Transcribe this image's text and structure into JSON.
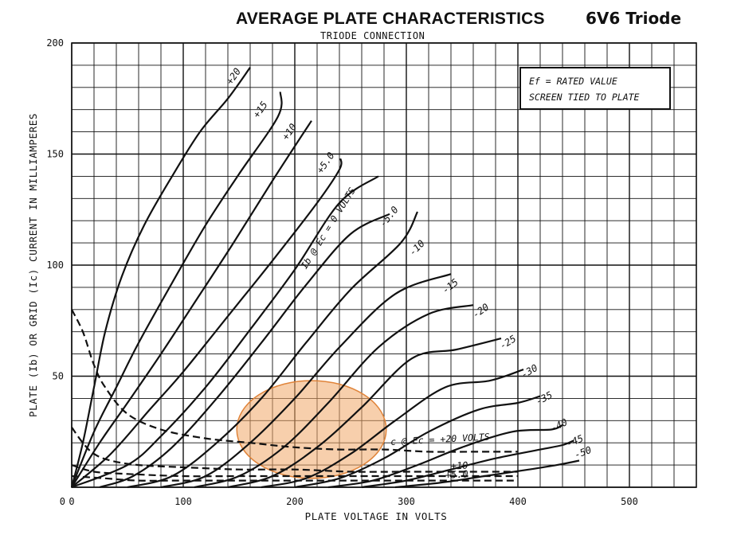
{
  "header": {
    "title": "AVERAGE PLATE CHARACTERISTICS",
    "subtitle": "TRIODE CONNECTION",
    "tube": "6V6 Triode"
  },
  "notes": {
    "line1": "Ef = RATED VALUE",
    "line2": "SCREEN TIED TO PLATE"
  },
  "chart_data": {
    "type": "line",
    "title": "AVERAGE PLATE CHARACTERISTICS",
    "xlabel": "PLATE VOLTAGE IN VOLTS",
    "ylabel": "PLATE (Ib) OR GRID (Ic) CURRENT IN MILLIAMPERES",
    "xlim": [
      0,
      560
    ],
    "ylim": [
      0,
      200
    ],
    "xticks": [
      0,
      100,
      200,
      300,
      400,
      500
    ],
    "yticks": [
      0,
      50,
      100,
      150,
      200
    ],
    "grid": true,
    "plate_curves_label": "Ib @ Ec = 0 VOLTS",
    "grid_curves_label": "Ic @ Ec = +20 VOLTS",
    "plate_series": [
      {
        "name": "+20",
        "label": "+20",
        "values": [
          [
            0,
            0
          ],
          [
            10,
            20
          ],
          [
            20,
            45
          ],
          [
            30,
            70
          ],
          [
            45,
            95
          ],
          [
            65,
            118
          ],
          [
            90,
            140
          ],
          [
            115,
            160
          ],
          [
            140,
            175
          ],
          [
            160,
            189
          ]
        ]
      },
      {
        "name": "+15",
        "label": "+15",
        "values": [
          [
            0,
            0
          ],
          [
            20,
            25
          ],
          [
            40,
            45
          ],
          [
            60,
            65
          ],
          [
            90,
            92
          ],
          [
            120,
            118
          ],
          [
            150,
            141
          ],
          [
            185,
            167
          ],
          [
            187,
            178
          ]
        ]
      },
      {
        "name": "+10",
        "label": "+10",
        "values": [
          [
            0,
            0
          ],
          [
            25,
            20
          ],
          [
            50,
            38
          ],
          [
            80,
            60
          ],
          [
            110,
            83
          ],
          [
            145,
            110
          ],
          [
            180,
            138
          ],
          [
            215,
            165
          ]
        ]
      },
      {
        "name": "+5.0",
        "label": "+5.0",
        "values": [
          [
            0,
            0
          ],
          [
            35,
            15
          ],
          [
            70,
            35
          ],
          [
            100,
            52
          ],
          [
            140,
            77
          ],
          [
            180,
            102
          ],
          [
            220,
            128
          ],
          [
            240,
            143
          ],
          [
            241,
            148
          ]
        ]
      },
      {
        "name": "0",
        "label": "0",
        "values": [
          [
            0,
            0
          ],
          [
            50,
            10
          ],
          [
            80,
            23
          ],
          [
            120,
            45
          ],
          [
            160,
            71
          ],
          [
            200,
            98
          ],
          [
            240,
            128
          ],
          [
            275,
            140
          ]
        ]
      },
      {
        "name": "-5.0",
        "label": "-5.0",
        "values": [
          [
            25,
            0
          ],
          [
            55,
            5
          ],
          [
            90,
            18
          ],
          [
            130,
            40
          ],
          [
            170,
            65
          ],
          [
            210,
            91
          ],
          [
            250,
            114
          ],
          [
            285,
            123
          ]
        ]
      },
      {
        "name": "-10",
        "label": "-10",
        "values": [
          [
            50,
            0
          ],
          [
            90,
            5
          ],
          [
            130,
            20
          ],
          [
            170,
            40
          ],
          [
            210,
            65
          ],
          [
            250,
            89
          ],
          [
            295,
            110
          ],
          [
            310,
            124
          ]
        ]
      },
      {
        "name": "-15",
        "label": "-15",
        "values": [
          [
            80,
            0
          ],
          [
            120,
            5
          ],
          [
            160,
            20
          ],
          [
            200,
            40
          ],
          [
            240,
            63
          ],
          [
            290,
            87
          ],
          [
            340,
            96
          ]
        ]
      },
      {
        "name": "-20",
        "label": "-20",
        "values": [
          [
            110,
            0
          ],
          [
            150,
            5
          ],
          [
            190,
            18
          ],
          [
            230,
            38
          ],
          [
            275,
            63
          ],
          [
            320,
            78
          ],
          [
            360,
            82
          ]
        ]
      },
      {
        "name": "-25",
        "label": "-25",
        "values": [
          [
            140,
            0
          ],
          [
            180,
            5
          ],
          [
            220,
            18
          ],
          [
            260,
            36
          ],
          [
            305,
            58
          ],
          [
            345,
            62
          ],
          [
            385,
            67
          ]
        ]
      },
      {
        "name": "-30",
        "label": "-30",
        "values": [
          [
            170,
            0
          ],
          [
            210,
            4
          ],
          [
            250,
            15
          ],
          [
            290,
            30
          ],
          [
            335,
            45
          ],
          [
            375,
            48
          ],
          [
            405,
            53
          ]
        ]
      },
      {
        "name": "-35",
        "label": "-35",
        "values": [
          [
            200,
            0
          ],
          [
            240,
            4
          ],
          [
            280,
            13
          ],
          [
            320,
            25
          ],
          [
            365,
            35
          ],
          [
            400,
            38
          ],
          [
            420,
            41
          ]
        ]
      },
      {
        "name": "-40",
        "label": "-40",
        "values": [
          [
            230,
            0
          ],
          [
            270,
            3
          ],
          [
            310,
            10
          ],
          [
            350,
            18
          ],
          [
            395,
            25
          ],
          [
            430,
            26
          ],
          [
            440,
            28
          ]
        ]
      },
      {
        "name": "-45",
        "label": "-45",
        "values": [
          [
            260,
            0
          ],
          [
            300,
            3
          ],
          [
            340,
            8
          ],
          [
            380,
            13
          ],
          [
            420,
            17
          ],
          [
            440,
            19
          ],
          [
            450,
            21
          ]
        ]
      },
      {
        "name": "-50",
        "label": "-50",
        "values": [
          [
            290,
            0
          ],
          [
            330,
            2
          ],
          [
            370,
            5
          ],
          [
            410,
            8
          ],
          [
            435,
            10
          ],
          [
            455,
            12
          ]
        ]
      }
    ],
    "grid_series": [
      {
        "name": "Ic +20",
        "label": "+20",
        "values": [
          [
            0,
            80
          ],
          [
            10,
            70
          ],
          [
            20,
            55
          ],
          [
            30,
            45
          ],
          [
            50,
            33
          ],
          [
            80,
            26
          ],
          [
            120,
            22
          ],
          [
            160,
            20
          ],
          [
            200,
            18
          ],
          [
            240,
            17
          ],
          [
            280,
            17
          ],
          [
            320,
            16
          ],
          [
            360,
            16
          ],
          [
            400,
            16
          ]
        ]
      },
      {
        "name": "Ic +15",
        "label": "",
        "values": [
          [
            0,
            27
          ],
          [
            10,
            20
          ],
          [
            20,
            15
          ],
          [
            35,
            12
          ],
          [
            60,
            10
          ],
          [
            100,
            9
          ],
          [
            150,
            8
          ],
          [
            200,
            8
          ],
          [
            250,
            7
          ],
          [
            300,
            7
          ],
          [
            350,
            7
          ],
          [
            400,
            7
          ]
        ]
      },
      {
        "name": "Ic +10",
        "label": "+10",
        "values": [
          [
            0,
            10
          ],
          [
            20,
            7
          ],
          [
            50,
            6
          ],
          [
            100,
            5
          ],
          [
            150,
            5
          ],
          [
            200,
            5
          ],
          [
            250,
            5
          ],
          [
            300,
            5
          ],
          [
            350,
            5
          ],
          [
            400,
            5
          ]
        ]
      },
      {
        "name": "Ic +5.0",
        "label": "+5.0",
        "values": [
          [
            0,
            5
          ],
          [
            30,
            4
          ],
          [
            60,
            3
          ],
          [
            100,
            3
          ],
          [
            150,
            3
          ],
          [
            200,
            3
          ],
          [
            250,
            3
          ],
          [
            300,
            3
          ],
          [
            350,
            3
          ],
          [
            400,
            3
          ]
        ]
      }
    ],
    "annotations": [
      {
        "text": "+20",
        "x": 143,
        "y": 181,
        "angle": -55
      },
      {
        "text": "+15",
        "x": 167,
        "y": 166,
        "angle": -55
      },
      {
        "text": "+10",
        "x": 193,
        "y": 156,
        "angle": -55
      },
      {
        "text": "+5.0",
        "x": 224,
        "y": 141,
        "angle": -55
      },
      {
        "text": "Ib @ Ec = 0 VOLTS",
        "x": 210,
        "y": 98,
        "angle": -58
      },
      {
        "text": "-5.0",
        "x": 280,
        "y": 117,
        "angle": -50
      },
      {
        "text": "-10",
        "x": 306,
        "y": 104,
        "angle": -45
      },
      {
        "text": "-15",
        "x": 335,
        "y": 87,
        "angle": -38
      },
      {
        "text": "-20",
        "x": 362,
        "y": 76,
        "angle": -35
      },
      {
        "text": "-25",
        "x": 386,
        "y": 62,
        "angle": -32
      },
      {
        "text": "-30",
        "x": 405,
        "y": 49,
        "angle": -30
      },
      {
        "text": "-35",
        "x": 418,
        "y": 37,
        "angle": -28
      },
      {
        "text": "-40",
        "x": 431,
        "y": 25,
        "angle": -25
      },
      {
        "text": "-45",
        "x": 445,
        "y": 18,
        "angle": -22
      },
      {
        "text": "-50",
        "x": 452,
        "y": 13,
        "angle": -20
      },
      {
        "text": "c @ Ec = +20 VOLTS",
        "x": 286,
        "y": 19,
        "angle": -3
      },
      {
        "text": "+10",
        "x": 340,
        "y": 8,
        "angle": -3
      },
      {
        "text": "+5.0",
        "x": 335,
        "y": 4,
        "angle": -3
      }
    ],
    "highlight": {
      "shape": "ellipse",
      "color": "#f0a868",
      "cx": 215,
      "cy": 26,
      "rx": 67,
      "ry": 22
    }
  }
}
